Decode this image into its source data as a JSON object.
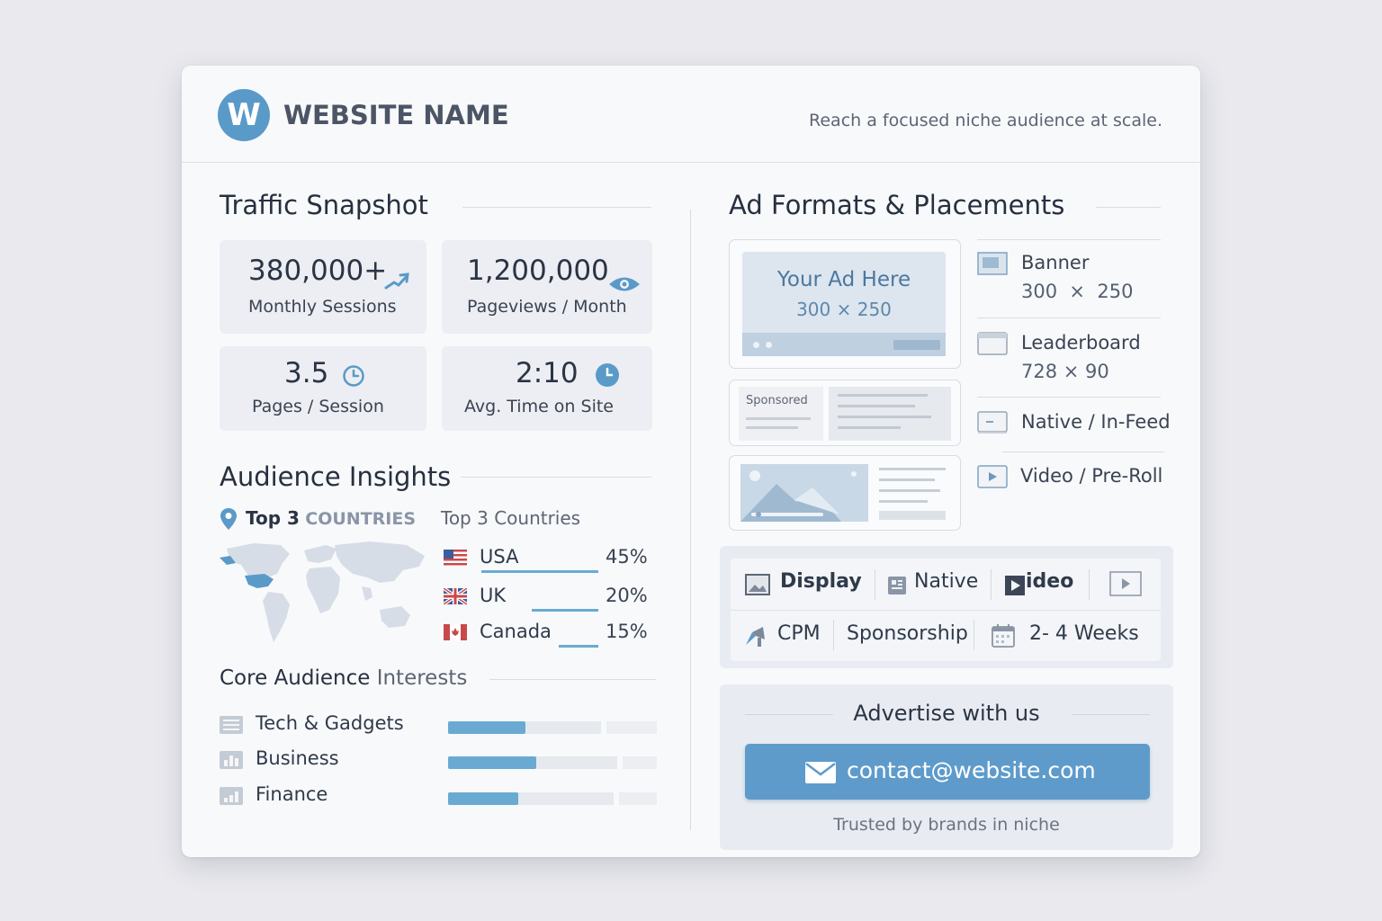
{
  "header": {
    "logo_letter": "W",
    "site_name": "WEBSITE NAME",
    "tagline": "Reach a focused niche audience at scale."
  },
  "traffic": {
    "title": "Traffic Snapshot",
    "stats": [
      {
        "value": "380,000+",
        "label": "Monthly Sessions",
        "icon": "trend-up-icon"
      },
      {
        "value": "1,200,000",
        "label": "Pageviews / Month",
        "icon": "eye-icon"
      },
      {
        "value": "3.5",
        "label": "Pages / Session",
        "icon": "clock-icon"
      },
      {
        "value": "2:10",
        "label": "Avg. Time on Site",
        "icon": "clock-icon"
      }
    ]
  },
  "audience": {
    "title": "Audience Insights",
    "countries_heading_bold": "Top 3",
    "countries_heading_caps": "COUNTRIES",
    "countries_heading_alt": "Top 3 Countries",
    "countries": [
      {
        "name": "USA",
        "percent": "45%",
        "value": 45
      },
      {
        "name": "UK",
        "percent": "20%",
        "value": 20
      },
      {
        "name": "Canada",
        "percent": "15%",
        "value": 15
      }
    ],
    "interests_title_bold": "Core Audience",
    "interests_title_rest": "Interests",
    "interests": [
      {
        "name": "Tech & Gadgets",
        "level": 0.5
      },
      {
        "name": "Business",
        "level": 0.57
      },
      {
        "name": "Finance",
        "level": 0.43
      }
    ]
  },
  "ads": {
    "title": "Ad Formats & Placements",
    "preview_title": "Your Ad Here",
    "preview_size": "300 × 250",
    "sponsored_label": "Sponsored",
    "formats": [
      {
        "name": "Banner",
        "size": "300  ×  250"
      },
      {
        "name": "Leaderboard",
        "size": "728 × 90"
      },
      {
        "name": "Native / In-Feed",
        "size": ""
      },
      {
        "name": "Video / Pre-Roll",
        "size": ""
      }
    ],
    "chips": {
      "display": "Display",
      "native": "Native",
      "video": "ideo",
      "cpm": "CPM",
      "sponsorship": "Sponsorship",
      "duration": "2- 4 Weeks"
    }
  },
  "cta": {
    "title": "Advertise with us",
    "email": "contact@website.com",
    "note": "Trusted by brands in niche"
  },
  "colors": {
    "accent": "#5e9bcb",
    "logo": "#5a9ac8",
    "bar": "#6aaad2"
  }
}
